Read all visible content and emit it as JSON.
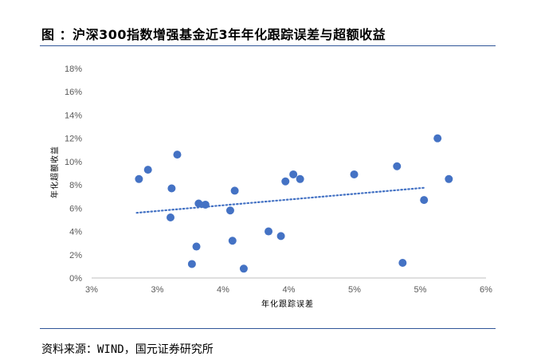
{
  "header": {
    "title": "图 ：沪深300指数增强基金近3年年化跟踪误差与超额收益"
  },
  "footer": {
    "source": "资料来源：WIND，国元证券研究所"
  },
  "chart_data": {
    "type": "scatter",
    "title": "",
    "xlabel": "年化跟踪误差",
    "ylabel": "年化超额收益",
    "x_ticks": [
      "3%",
      "3%",
      "4%",
      "4%",
      "5%",
      "5%",
      "6%"
    ],
    "y_ticks": [
      "0%",
      "2%",
      "4%",
      "6%",
      "8%",
      "10%",
      "12%",
      "14%",
      "16%",
      "18%"
    ],
    "xlim": [
      2.5,
      6.0
    ],
    "ylim": [
      0,
      18
    ],
    "grid": false,
    "trendline": {
      "style": "dotted",
      "from": [
        2.9,
        5.6
      ],
      "to": [
        5.45,
        7.75
      ]
    },
    "marker_color": "#4472c4",
    "trendline_color": "#4472c4",
    "series": [
      {
        "points": [
          [
            2.92,
            8.5
          ],
          [
            3.0,
            9.3
          ],
          [
            3.21,
            7.7
          ],
          [
            3.2,
            5.2
          ],
          [
            3.26,
            10.6
          ],
          [
            3.39,
            1.2
          ],
          [
            3.43,
            2.7
          ],
          [
            3.45,
            6.4
          ],
          [
            3.51,
            6.3
          ],
          [
            3.73,
            5.8
          ],
          [
            3.75,
            3.2
          ],
          [
            3.77,
            7.5
          ],
          [
            3.85,
            0.8
          ],
          [
            4.07,
            4.0
          ],
          [
            4.18,
            3.6
          ],
          [
            4.22,
            8.3
          ],
          [
            4.29,
            8.9
          ],
          [
            4.35,
            8.5
          ],
          [
            4.83,
            8.9
          ],
          [
            5.21,
            9.6
          ],
          [
            5.26,
            1.3
          ],
          [
            5.45,
            6.7
          ],
          [
            5.57,
            12.0
          ],
          [
            5.67,
            8.5
          ]
        ]
      }
    ]
  }
}
